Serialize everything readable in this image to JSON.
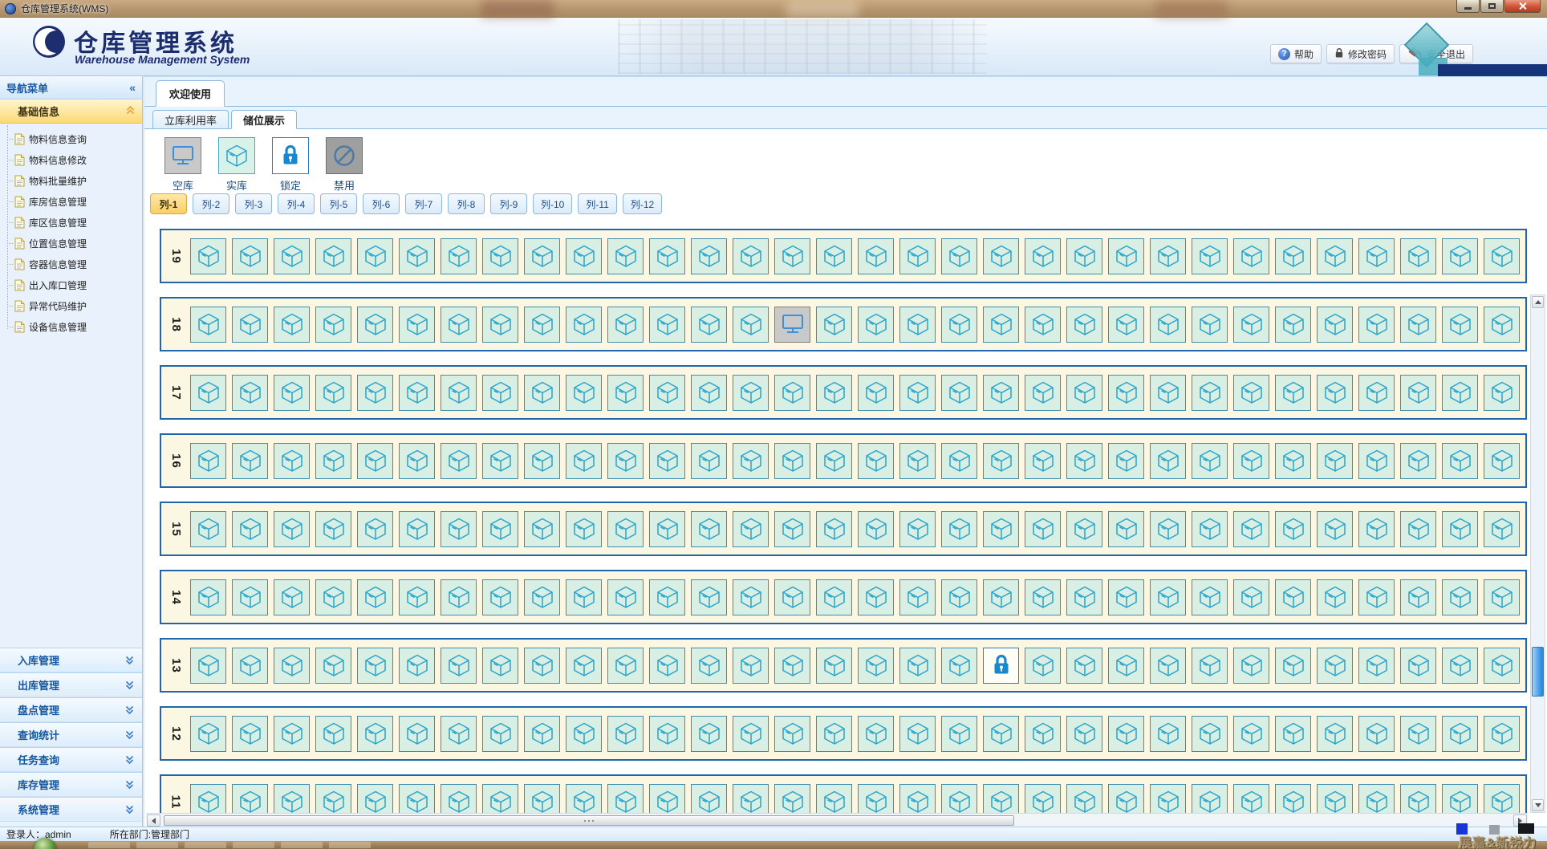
{
  "window": {
    "title": "仓库管理系统(WMS)"
  },
  "header": {
    "app_title": "仓库管理系统",
    "app_subtitle": "Warehouse Management System",
    "help_label": "帮助",
    "password_label": "修改密码",
    "logout_label": "安全退出"
  },
  "icons": {
    "collapse": "«",
    "help_glyph": "?"
  },
  "sidebar": {
    "title": "导航菜单",
    "base_section": "基础信息",
    "items": [
      "物料信息查询",
      "物料信息修改",
      "物料批量维护",
      "库房信息管理",
      "库区信息管理",
      "位置信息管理",
      "容器信息管理",
      "出入库口管理",
      "异常代码维护",
      "设备信息管理"
    ],
    "sections": [
      "入库管理",
      "出库管理",
      "盘点管理",
      "查询统计",
      "任务查询",
      "库存管理",
      "系统管理"
    ]
  },
  "tabs": {
    "welcome": "欢迎使用",
    "usage_rate": "立库利用率",
    "storage_display": "储位展示"
  },
  "legend": [
    {
      "label": "空库",
      "state": "empty",
      "icon": "monitor-icon"
    },
    {
      "label": "实库",
      "state": "occupied",
      "icon": "cube-icon"
    },
    {
      "label": "锁定",
      "state": "locked",
      "icon": "lock-icon"
    },
    {
      "label": "禁用",
      "state": "disabled",
      "icon": "ban-icon"
    }
  ],
  "column_tabs": {
    "active": "列-1",
    "items": [
      "列-1",
      "列-2",
      "列-3",
      "列-4",
      "列-5",
      "列-6",
      "列-7",
      "列-8",
      "列-9",
      "列-10",
      "列-11",
      "列-12"
    ]
  },
  "grid": {
    "cells_per_row": 32,
    "rows": [
      {
        "label": "19",
        "special": {}
      },
      {
        "label": "18",
        "special": {
          "14": "empty"
        }
      },
      {
        "label": "17",
        "special": {}
      },
      {
        "label": "16",
        "special": {}
      },
      {
        "label": "15",
        "special": {}
      },
      {
        "label": "14",
        "special": {}
      },
      {
        "label": "13",
        "special": {
          "19": "locked"
        }
      },
      {
        "label": "12",
        "special": {}
      },
      {
        "label": "11",
        "special": {}
      }
    ]
  },
  "status": {
    "login": "登录人：admin",
    "department": "所在部门:管理部门"
  },
  "watermark": "展嘉&新锐力",
  "colors": {
    "band_border": "#1f66ad",
    "band_bg": "#fcf7e3",
    "cell_bg": "#d9efe4",
    "active_tab": "#f9cf67",
    "lock_blue": "#1787d0"
  }
}
